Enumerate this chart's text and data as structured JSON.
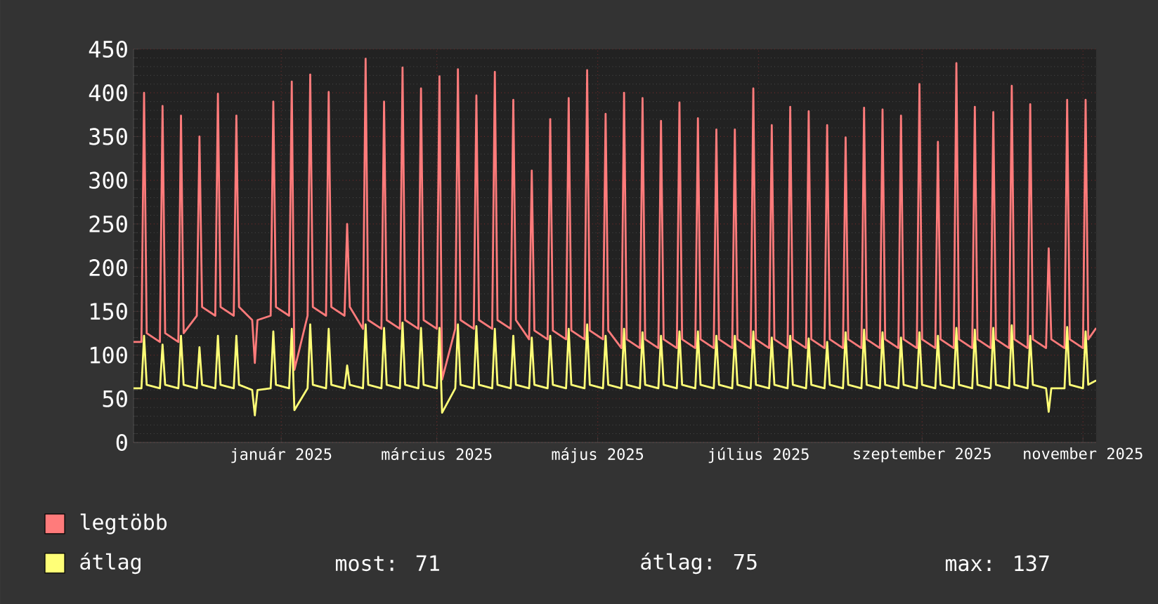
{
  "chart_data": {
    "type": "line",
    "xlim": [
      "2024-11-21",
      "2025-11-21"
    ],
    "xticks": [
      {
        "value": "2025-01-16",
        "label": "január 2025"
      },
      {
        "value": "2025-03-16",
        "label": "március 2025"
      },
      {
        "value": "2025-05-16",
        "label": "május 2025"
      },
      {
        "value": "2025-07-16",
        "label": "július 2025"
      },
      {
        "value": "2025-09-16",
        "label": "szeptember 2025"
      },
      {
        "value": "2025-11-16",
        "label": "november 2025"
      }
    ],
    "ylim": [
      0,
      450
    ],
    "yticks": [
      0,
      50,
      100,
      150,
      200,
      250,
      300,
      350,
      400,
      450
    ],
    "grid": true,
    "legend": "bottom",
    "marker": "none",
    "line_style": "solid",
    "annotations": [
      "most: 71",
      "átlag: 75",
      "max: 137"
    ],
    "x": [
      "2024-11-21",
      "2024-11-24",
      "2024-11-25",
      "2024-11-26",
      "2024-12-01",
      "2024-12-02",
      "2024-12-03",
      "2024-12-08",
      "2024-12-09",
      "2024-12-10",
      "2024-12-15",
      "2024-12-16",
      "2024-12-17",
      "2024-12-22",
      "2024-12-23",
      "2024-12-24",
      "2024-12-29",
      "2024-12-30",
      "2024-12-31",
      "2025-01-05",
      "2025-01-06",
      "2025-01-07",
      "2025-01-12",
      "2025-01-13",
      "2025-01-14",
      "2025-01-19",
      "2025-01-20",
      "2025-01-21",
      "2025-01-26",
      "2025-01-27",
      "2025-01-28",
      "2025-02-02",
      "2025-02-03",
      "2025-02-04",
      "2025-02-09",
      "2025-02-10",
      "2025-02-11",
      "2025-02-16",
      "2025-02-17",
      "2025-02-18",
      "2025-02-23",
      "2025-02-24",
      "2025-02-25",
      "2025-03-02",
      "2025-03-03",
      "2025-03-04",
      "2025-03-09",
      "2025-03-10",
      "2025-03-11",
      "2025-03-16",
      "2025-03-17",
      "2025-03-18",
      "2025-03-23",
      "2025-03-24",
      "2025-03-25",
      "2025-03-30",
      "2025-03-31",
      "2025-04-01",
      "2025-04-06",
      "2025-04-07",
      "2025-04-08",
      "2025-04-13",
      "2025-04-14",
      "2025-04-15",
      "2025-04-20",
      "2025-04-21",
      "2025-04-22",
      "2025-04-27",
      "2025-04-28",
      "2025-04-29",
      "2025-05-04",
      "2025-05-05",
      "2025-05-06",
      "2025-05-11",
      "2025-05-12",
      "2025-05-13",
      "2025-05-18",
      "2025-05-19",
      "2025-05-20",
      "2025-05-25",
      "2025-05-26",
      "2025-05-27",
      "2025-06-01",
      "2025-06-02",
      "2025-06-03",
      "2025-06-08",
      "2025-06-09",
      "2025-06-10",
      "2025-06-15",
      "2025-06-16",
      "2025-06-17",
      "2025-06-22",
      "2025-06-23",
      "2025-06-24",
      "2025-06-29",
      "2025-06-30",
      "2025-07-01",
      "2025-07-06",
      "2025-07-07",
      "2025-07-08",
      "2025-07-13",
      "2025-07-14",
      "2025-07-15",
      "2025-07-20",
      "2025-07-21",
      "2025-07-22",
      "2025-07-27",
      "2025-07-28",
      "2025-07-29",
      "2025-08-03",
      "2025-08-04",
      "2025-08-05",
      "2025-08-10",
      "2025-08-11",
      "2025-08-12",
      "2025-08-17",
      "2025-08-18",
      "2025-08-19",
      "2025-08-24",
      "2025-08-25",
      "2025-08-26",
      "2025-08-31",
      "2025-09-01",
      "2025-09-02",
      "2025-09-07",
      "2025-09-08",
      "2025-09-09",
      "2025-09-14",
      "2025-09-15",
      "2025-09-16",
      "2025-09-21",
      "2025-09-22",
      "2025-09-23",
      "2025-09-28",
      "2025-09-29",
      "2025-09-30",
      "2025-10-05",
      "2025-10-06",
      "2025-10-07",
      "2025-10-12",
      "2025-10-13",
      "2025-10-14",
      "2025-10-19",
      "2025-10-20",
      "2025-10-21",
      "2025-10-26",
      "2025-10-27",
      "2025-10-28",
      "2025-11-02",
      "2025-11-03",
      "2025-11-04",
      "2025-11-09",
      "2025-11-10",
      "2025-11-11",
      "2025-11-16",
      "2025-11-17",
      "2025-11-18",
      "2025-11-21"
    ],
    "series": [
      {
        "name": "legtöbb",
        "color": "#ff7b7b",
        "values": [
          115,
          115,
          400,
          125,
          115,
          385,
          125,
          115,
          374,
          125,
          145,
          350,
          155,
          145,
          399,
          155,
          145,
          374,
          155,
          140,
          91,
          140,
          145,
          390,
          155,
          145,
          413,
          83,
          145,
          421,
          155,
          145,
          401,
          155,
          145,
          250,
          155,
          130,
          439,
          140,
          130,
          390,
          140,
          130,
          429,
          140,
          130,
          405,
          140,
          130,
          419,
          72,
          130,
          427,
          140,
          130,
          397,
          140,
          130,
          424,
          140,
          130,
          392,
          140,
          118,
          311,
          128,
          118,
          370,
          128,
          118,
          394,
          128,
          118,
          426,
          128,
          118,
          376,
          128,
          108,
          400,
          118,
          108,
          394,
          118,
          108,
          368,
          118,
          108,
          389,
          118,
          108,
          371,
          118,
          108,
          358,
          118,
          108,
          358,
          118,
          108,
          405,
          118,
          108,
          363,
          118,
          108,
          384,
          118,
          108,
          379,
          118,
          108,
          363,
          118,
          108,
          349,
          118,
          108,
          383,
          118,
          108,
          381,
          118,
          108,
          374,
          118,
          108,
          410,
          118,
          108,
          344,
          118,
          108,
          434,
          118,
          108,
          384,
          118,
          108,
          378,
          118,
          108,
          408,
          118,
          108,
          387,
          118,
          108,
          222,
          118,
          108,
          392,
          118,
          108,
          392,
          118,
          131
        ]
      },
      {
        "name": "átlag",
        "color": "#ffff77",
        "values": [
          62,
          62,
          122,
          66,
          62,
          112,
          66,
          62,
          122,
          66,
          62,
          109,
          66,
          62,
          122,
          66,
          62,
          122,
          66,
          60,
          31,
          60,
          62,
          127,
          66,
          62,
          130,
          37,
          62,
          135,
          66,
          62,
          130,
          66,
          62,
          88,
          66,
          62,
          135,
          66,
          62,
          131,
          66,
          62,
          137,
          66,
          62,
          131,
          66,
          62,
          131,
          34,
          62,
          135,
          66,
          62,
          133,
          66,
          62,
          130,
          66,
          62,
          122,
          66,
          62,
          120,
          66,
          62,
          122,
          66,
          62,
          130,
          66,
          62,
          135,
          66,
          62,
          122,
          66,
          62,
          130,
          66,
          62,
          126,
          66,
          62,
          122,
          66,
          62,
          127,
          66,
          62,
          127,
          66,
          62,
          122,
          66,
          62,
          122,
          66,
          62,
          127,
          66,
          62,
          120,
          66,
          62,
          122,
          66,
          62,
          119,
          66,
          62,
          115,
          66,
          62,
          126,
          66,
          62,
          129,
          66,
          62,
          126,
          66,
          62,
          120,
          66,
          62,
          126,
          66,
          62,
          122,
          66,
          62,
          131,
          66,
          62,
          129,
          66,
          62,
          131,
          66,
          62,
          134,
          66,
          62,
          122,
          66,
          62,
          35,
          62,
          62,
          132,
          66,
          62,
          127,
          66,
          71
        ]
      }
    ]
  }
}
